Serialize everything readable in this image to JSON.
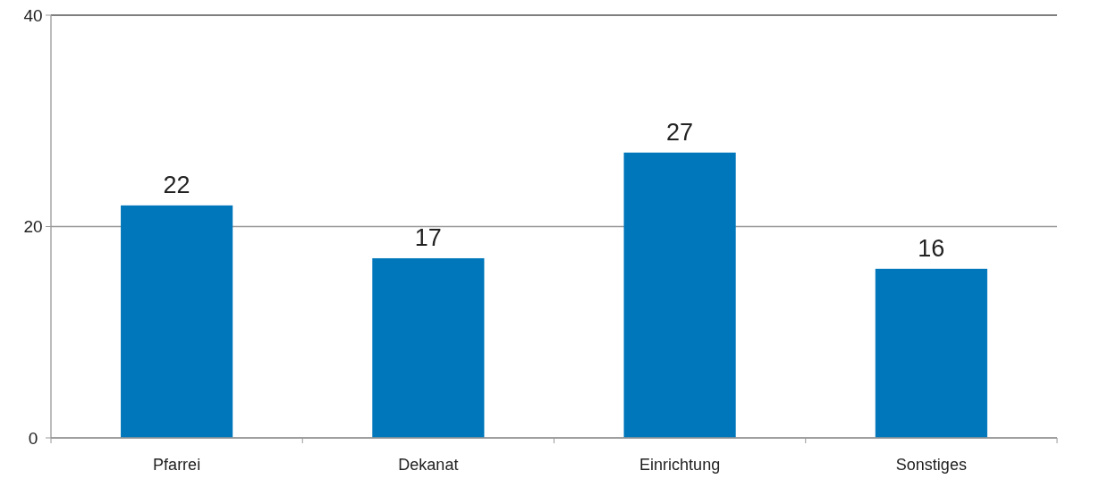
{
  "chart_data": {
    "type": "bar",
    "categories": [
      "Pfarrei",
      "Dekanat",
      "Einrichtung",
      "Sonstiges"
    ],
    "values": [
      22,
      17,
      27,
      16
    ],
    "color": "#0077bb",
    "ylim": [
      0,
      40
    ],
    "yticks": [
      0,
      20,
      40
    ],
    "grid": "y",
    "data_labels": true
  }
}
